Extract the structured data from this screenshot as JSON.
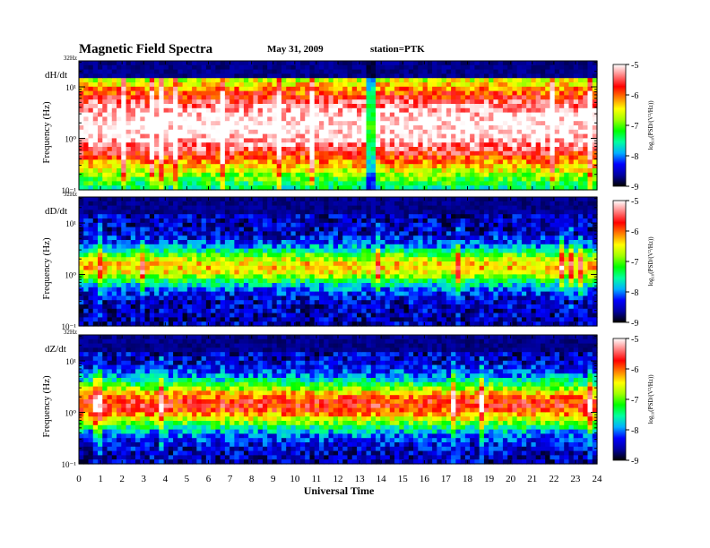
{
  "header": {
    "title": "Magnetic  Field  Spectra",
    "date": "May 31, 2009",
    "station": "station=PTK"
  },
  "chart_data": {
    "type": "heatmap",
    "x_label": "Universal Time",
    "x_ticks": [
      "0",
      "1",
      "2",
      "3",
      "4",
      "5",
      "6",
      "7",
      "8",
      "9",
      "10",
      "11",
      "12",
      "13",
      "14",
      "15",
      "16",
      "17",
      "18",
      "19",
      "20",
      "21",
      "22",
      "23",
      "24"
    ],
    "xlim": [
      0,
      24
    ],
    "y_label": "Frequency  (Hz)",
    "y_scale": "log",
    "y_top_label": "32Hz",
    "y_ticks": [
      "10¹",
      "10⁰",
      "10⁻¹"
    ],
    "colorbar": {
      "label": "log₁₀(PSD/(V²/Hz))",
      "ticks": [
        "-5",
        "-6",
        "-7",
        "-8",
        "-9"
      ],
      "range": [
        -9,
        -5
      ],
      "colors": [
        "#000000",
        "#0000a0",
        "#0000ff",
        "#00b0ff",
        "#00ffa0",
        "#00ff00",
        "#a0ff00",
        "#ffff00",
        "#ff8000",
        "#ff0000",
        "#ff8080",
        "#ffffff"
      ]
    },
    "panels": [
      {
        "name": "dH/dt",
        "peak_log10_freq": 0.25,
        "band_width": 1.1,
        "intensity": 0.9
      },
      {
        "name": "dD/dt",
        "peak_log10_freq": 0.15,
        "band_width": 0.35,
        "intensity": 0.55
      },
      {
        "name": "dZ/dt",
        "peak_log10_freq": 0.15,
        "band_width": 0.45,
        "intensity": 0.7
      }
    ]
  }
}
